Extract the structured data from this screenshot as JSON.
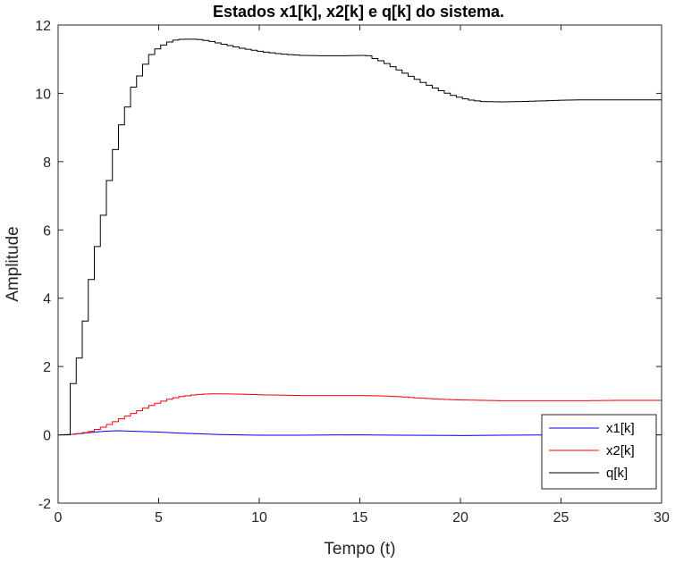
{
  "chart_data": {
    "type": "line",
    "title": "Estados x1[k], x2[k] e q[k] do sistema.",
    "xlabel": "Tempo (t)",
    "ylabel": "Amplitude",
    "xlim": [
      0,
      30
    ],
    "ylim": [
      -2,
      12
    ],
    "xticks": [
      0,
      5,
      10,
      15,
      20,
      25,
      30
    ],
    "yticks": [
      -2,
      0,
      2,
      4,
      6,
      8,
      10,
      12
    ],
    "grid": false,
    "legend_position": "bottom-right",
    "step_interval": 0.3,
    "series": [
      {
        "name": "x1[k]",
        "color": "#0000ff",
        "style": "smooth",
        "points": [
          [
            0,
            0
          ],
          [
            0.5,
            0.01
          ],
          [
            1,
            0.03
          ],
          [
            1.5,
            0.06
          ],
          [
            2,
            0.09
          ],
          [
            2.5,
            0.11
          ],
          [
            3,
            0.12
          ],
          [
            3.5,
            0.11
          ],
          [
            4,
            0.1
          ],
          [
            5,
            0.08
          ],
          [
            6,
            0.05
          ],
          [
            7,
            0.03
          ],
          [
            8,
            0.01
          ],
          [
            9,
            0
          ],
          [
            10,
            -0.01
          ],
          [
            12,
            -0.01
          ],
          [
            15,
            0
          ],
          [
            17,
            -0.01
          ],
          [
            20,
            -0.02
          ],
          [
            22,
            -0.01
          ],
          [
            25,
            0
          ],
          [
            30,
            0
          ]
        ]
      },
      {
        "name": "x2[k]",
        "color": "#ff0000",
        "style": "step",
        "points": [
          [
            0,
            0
          ],
          [
            0.5,
            0.01
          ],
          [
            1,
            0.04
          ],
          [
            1.5,
            0.1
          ],
          [
            2,
            0.2
          ],
          [
            2.5,
            0.33
          ],
          [
            3,
            0.47
          ],
          [
            3.5,
            0.6
          ],
          [
            4,
            0.73
          ],
          [
            4.5,
            0.86
          ],
          [
            5,
            0.97
          ],
          [
            5.5,
            1.06
          ],
          [
            6,
            1.12
          ],
          [
            6.5,
            1.16
          ],
          [
            7,
            1.19
          ],
          [
            7.5,
            1.2
          ],
          [
            8,
            1.2
          ],
          [
            9,
            1.19
          ],
          [
            10,
            1.17
          ],
          [
            11,
            1.16
          ],
          [
            12,
            1.15
          ],
          [
            13,
            1.15
          ],
          [
            14,
            1.15
          ],
          [
            15,
            1.15
          ],
          [
            16,
            1.14
          ],
          [
            17,
            1.11
          ],
          [
            18,
            1.07
          ],
          [
            19,
            1.04
          ],
          [
            20,
            1.02
          ],
          [
            21,
            1.01
          ],
          [
            22,
            1.0
          ],
          [
            24,
            1.0
          ],
          [
            26,
            1.0
          ],
          [
            28,
            1.01
          ],
          [
            30,
            1.01
          ]
        ]
      },
      {
        "name": "q[k]",
        "color": "#000000",
        "style": "step",
        "points": [
          [
            0,
            0
          ],
          [
            0.4,
            0
          ],
          [
            0.5,
            1.25
          ],
          [
            1,
            2.5
          ],
          [
            1.3,
            3.75
          ],
          [
            1.6,
            4.95
          ],
          [
            2,
            6.08
          ],
          [
            2.3,
            7.13
          ],
          [
            2.6,
            8.08
          ],
          [
            2.9,
            8.9
          ],
          [
            3.3,
            9.6
          ],
          [
            3.6,
            10.18
          ],
          [
            4,
            10.62
          ],
          [
            4.3,
            10.97
          ],
          [
            4.6,
            11.22
          ],
          [
            5,
            11.38
          ],
          [
            5.3,
            11.48
          ],
          [
            5.6,
            11.55
          ],
          [
            6,
            11.58
          ],
          [
            6.5,
            11.59
          ],
          [
            7,
            11.57
          ],
          [
            7.5,
            11.52
          ],
          [
            8,
            11.45
          ],
          [
            9,
            11.32
          ],
          [
            10,
            11.22
          ],
          [
            11,
            11.15
          ],
          [
            12,
            11.11
          ],
          [
            13,
            11.1
          ],
          [
            14,
            11.1
          ],
          [
            15,
            11.11
          ],
          [
            15.3,
            11.1
          ],
          [
            15.6,
            11.02
          ],
          [
            16,
            10.93
          ],
          [
            16.5,
            10.78
          ],
          [
            17,
            10.62
          ],
          [
            17.5,
            10.47
          ],
          [
            18,
            10.32
          ],
          [
            18.5,
            10.18
          ],
          [
            19,
            10.05
          ],
          [
            19.5,
            9.94
          ],
          [
            20,
            9.85
          ],
          [
            20.5,
            9.79
          ],
          [
            21,
            9.76
          ],
          [
            22,
            9.75
          ],
          [
            23,
            9.76
          ],
          [
            24,
            9.78
          ],
          [
            25,
            9.8
          ],
          [
            26,
            9.81
          ],
          [
            27,
            9.81
          ],
          [
            28,
            9.81
          ],
          [
            29,
            9.81
          ],
          [
            30,
            9.81
          ]
        ]
      }
    ]
  }
}
